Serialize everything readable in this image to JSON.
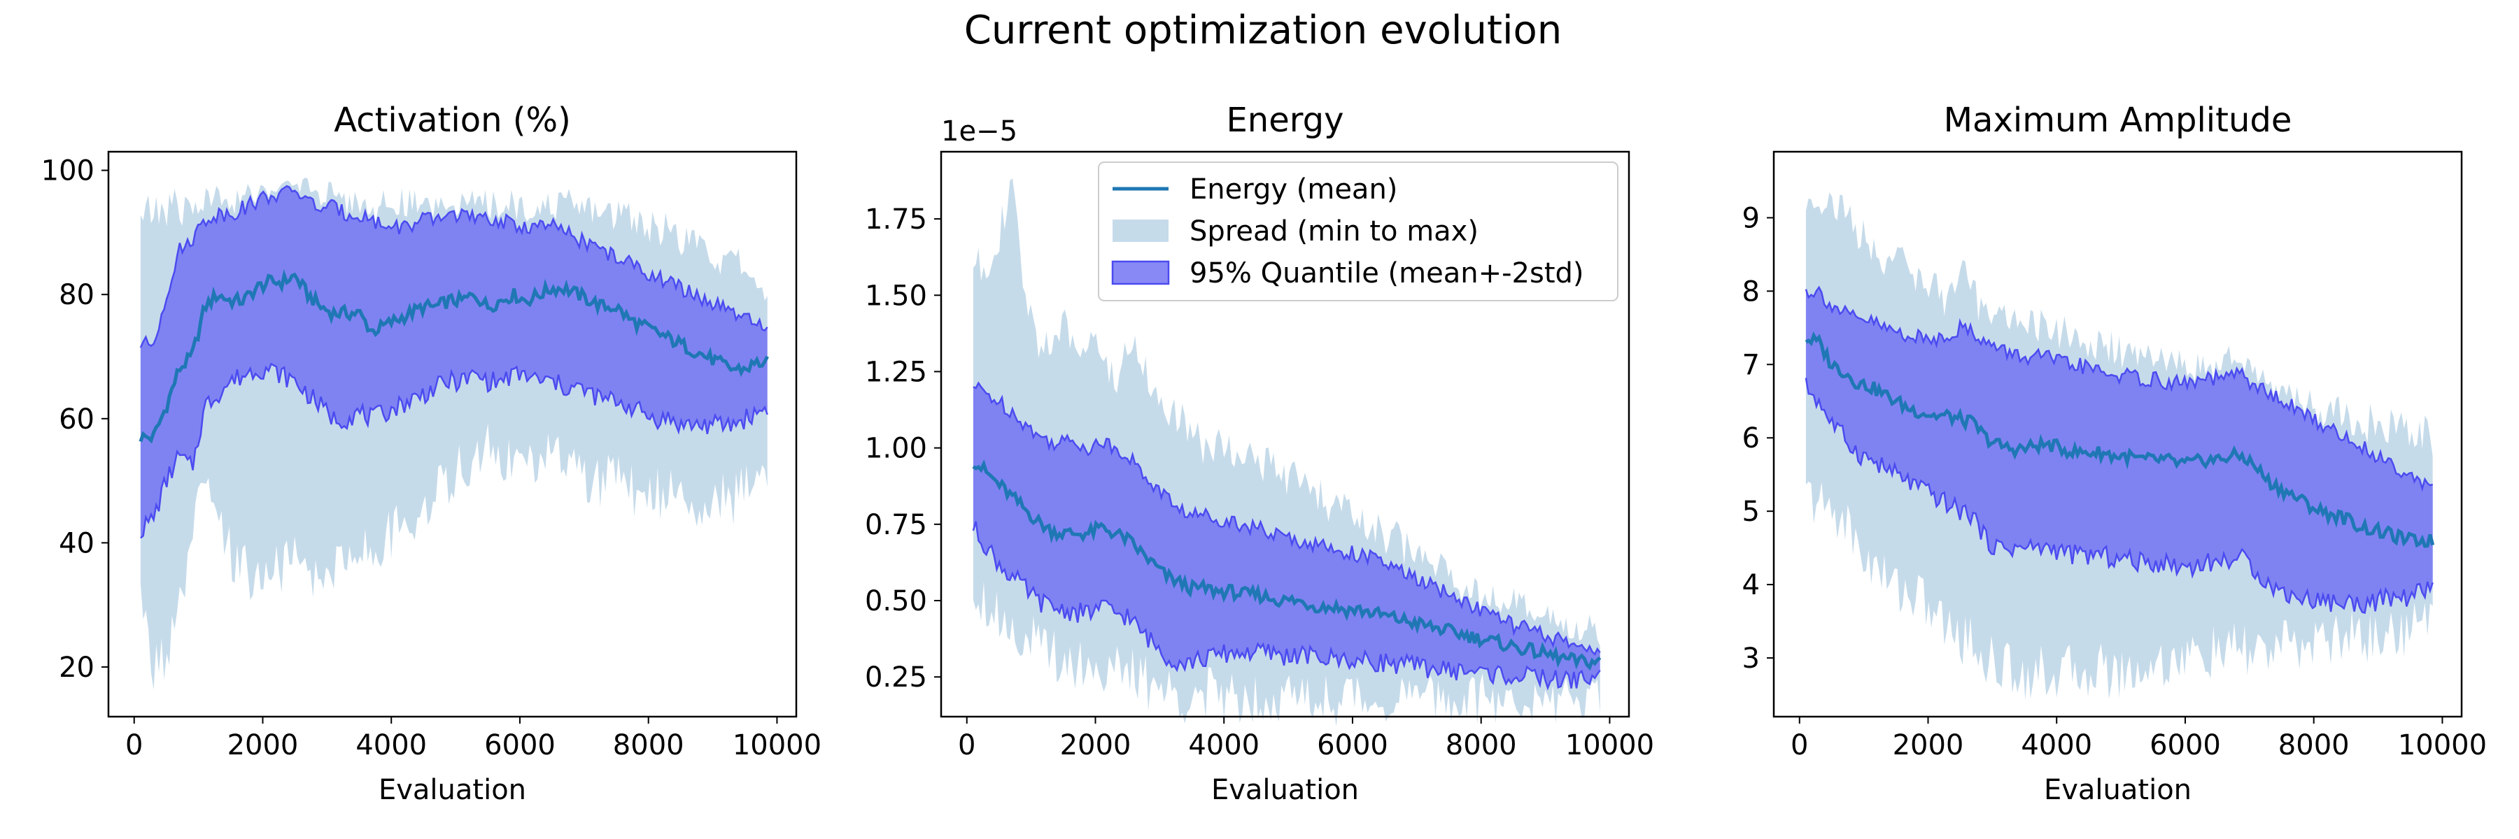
{
  "figure": {
    "title": "Current optimization evolution"
  },
  "style": {
    "mean_color": "#1f77b4",
    "spread_color": "#c6dbea",
    "quantile_fill": "#6f6ff4",
    "quantile_edge": "#4b4bf0"
  },
  "legend": {
    "location": "upper right of Energy panel",
    "entries": [
      "Energy (mean)",
      "Spread (min to max)",
      "95% Quantile (mean+-2std)"
    ]
  },
  "chart_data": [
    {
      "type": "area",
      "title": "Activation (%)",
      "xlabel": "Evaluation",
      "ylabel": "",
      "xlim": [
        -400,
        10300
      ],
      "ylim": [
        12,
        103
      ],
      "xticks": [
        0,
        2000,
        4000,
        6000,
        8000,
        10000
      ],
      "xtick_labels": [
        "0",
        "2000",
        "4000",
        "6000",
        "8000",
        "10000"
      ],
      "yticks": [
        20,
        40,
        60,
        80,
        100
      ],
      "ytick_labels": [
        "20",
        "40",
        "60",
        "80",
        "100"
      ],
      "offset_text": "",
      "grid": false,
      "x": [
        100,
        300,
        500,
        700,
        900,
        1100,
        1300,
        1500,
        1700,
        1900,
        2100,
        2300,
        2500,
        2700,
        2900,
        3100,
        3300,
        3500,
        3700,
        3900,
        4100,
        4300,
        4500,
        4700,
        4900,
        5100,
        5300,
        5500,
        5700,
        5900,
        6100,
        6300,
        6500,
        6700,
        6900,
        7100,
        7300,
        7500,
        7700,
        7900,
        8100,
        8300,
        8500,
        8700,
        8900,
        9100,
        9300,
        9500,
        9700,
        9850
      ],
      "series": [
        {
          "name": "Energy (mean)",
          "role": "mean",
          "values": [
            57,
            57,
            62,
            68,
            70,
            78,
            80,
            79,
            79,
            81,
            82,
            82,
            83,
            80,
            78,
            77,
            77,
            77,
            74,
            75,
            76,
            77,
            78,
            78,
            79,
            79,
            80,
            78,
            79,
            80,
            79,
            80,
            81,
            81,
            80,
            79,
            78,
            78,
            76,
            75,
            74,
            73,
            72,
            71,
            70,
            69,
            68,
            68,
            69,
            69
          ]
        },
        {
          "name": "Spread (min to max)",
          "role": "spread",
          "lower": [
            30,
            20,
            22,
            28,
            40,
            50,
            42,
            38,
            36,
            34,
            35,
            36,
            37,
            35,
            34,
            36,
            38,
            40,
            38,
            40,
            42,
            44,
            46,
            48,
            50,
            52,
            54,
            55,
            54,
            53,
            52,
            53,
            54,
            53,
            52,
            50,
            50,
            50,
            49,
            48,
            48,
            48,
            48,
            47,
            47,
            47,
            47,
            48,
            50,
            52
          ],
          "upper": [
            93,
            93,
            94,
            94,
            94,
            95,
            95,
            95,
            95,
            95,
            96,
            96,
            96,
            96,
            95,
            95,
            95,
            95,
            94,
            94,
            94,
            94,
            94,
            94,
            94,
            94,
            94,
            94,
            94,
            94,
            94,
            94,
            94,
            94,
            94,
            94,
            93,
            93,
            93,
            92,
            91,
            90,
            89,
            88,
            87,
            86,
            85,
            84,
            82,
            80
          ]
        },
        {
          "name": "95% Quantile (mean+-2std)",
          "role": "quantile",
          "lower": [
            42,
            44,
            50,
            54,
            52,
            62,
            64,
            66,
            67,
            68,
            68,
            67,
            66,
            64,
            62,
            60,
            60,
            61,
            60,
            61,
            62,
            63,
            64,
            65,
            66,
            66,
            67,
            66,
            66,
            67,
            67,
            66,
            66,
            65,
            65,
            64,
            63,
            63,
            62,
            61,
            60,
            60,
            59,
            59,
            59,
            59,
            59,
            60,
            61,
            62
          ],
          "upper": [
            72,
            72,
            80,
            87,
            89,
            92,
            93,
            93,
            94,
            95,
            96,
            96,
            97,
            95,
            94,
            94,
            93,
            93,
            92,
            91,
            91,
            91,
            92,
            92,
            93,
            93,
            92,
            92,
            92,
            91,
            91,
            91,
            91,
            90,
            89,
            88,
            87,
            86,
            85,
            84,
            83,
            82,
            81,
            80,
            79,
            78,
            77,
            76,
            75,
            74
          ]
        }
      ]
    },
    {
      "type": "area",
      "title": "Energy",
      "xlabel": "Evaluation",
      "ylabel": "",
      "xlim": [
        -400,
        10300
      ],
      "ylim": [
        0.12,
        1.97
      ],
      "xticks": [
        0,
        2000,
        4000,
        6000,
        8000,
        10000
      ],
      "xtick_labels": [
        "0",
        "2000",
        "4000",
        "6000",
        "8000",
        "10000"
      ],
      "yticks": [
        0.25,
        0.5,
        0.75,
        1.0,
        1.25,
        1.5,
        1.75
      ],
      "ytick_labels": [
        "0.25",
        "0.50",
        "0.75",
        "1.00",
        "1.25",
        "1.50",
        "1.75"
      ],
      "offset_text": "1e−5",
      "grid": false,
      "x": [
        100,
        300,
        500,
        700,
        900,
        1100,
        1300,
        1500,
        1700,
        1900,
        2100,
        2300,
        2500,
        2700,
        2900,
        3100,
        3300,
        3500,
        3700,
        3900,
        4100,
        4300,
        4500,
        4700,
        4900,
        5100,
        5300,
        5500,
        5700,
        5900,
        6100,
        6300,
        6500,
        6700,
        6900,
        7100,
        7300,
        7500,
        7700,
        7900,
        8100,
        8300,
        8500,
        8700,
        8900,
        9100,
        9300,
        9500,
        9700,
        9850
      ],
      "series": [
        {
          "name": "Energy (mean)",
          "role": "mean",
          "values": [
            0.96,
            0.92,
            0.88,
            0.84,
            0.8,
            0.76,
            0.73,
            0.72,
            0.72,
            0.72,
            0.74,
            0.72,
            0.7,
            0.66,
            0.62,
            0.58,
            0.56,
            0.54,
            0.54,
            0.53,
            0.53,
            0.52,
            0.52,
            0.51,
            0.5,
            0.5,
            0.49,
            0.48,
            0.48,
            0.47,
            0.47,
            0.46,
            0.45,
            0.44,
            0.43,
            0.42,
            0.41,
            0.4,
            0.39,
            0.38,
            0.37,
            0.36,
            0.35,
            0.34,
            0.33,
            0.32,
            0.31,
            0.3,
            0.3,
            0.3
          ]
        },
        {
          "name": "Spread (min to max)",
          "role": "spread",
          "lower": [
            0.55,
            0.5,
            0.45,
            0.42,
            0.38,
            0.35,
            0.33,
            0.31,
            0.3,
            0.29,
            0.28,
            0.27,
            0.26,
            0.24,
            0.22,
            0.2,
            0.19,
            0.19,
            0.19,
            0.19,
            0.19,
            0.19,
            0.19,
            0.19,
            0.19,
            0.18,
            0.18,
            0.18,
            0.18,
            0.18,
            0.18,
            0.18,
            0.18,
            0.18,
            0.18,
            0.18,
            0.18,
            0.18,
            0.18,
            0.18,
            0.18,
            0.18,
            0.18,
            0.18,
            0.18,
            0.18,
            0.19,
            0.19,
            0.2,
            0.2
          ],
          "upper": [
            1.6,
            1.6,
            1.7,
            1.85,
            1.5,
            1.35,
            1.35,
            1.4,
            1.3,
            1.4,
            1.3,
            1.2,
            1.35,
            1.3,
            1.2,
            1.1,
            1.1,
            1.05,
            1.0,
            1.0,
            1.0,
            1.0,
            0.95,
            0.95,
            0.9,
            0.9,
            0.85,
            0.85,
            0.8,
            0.8,
            0.75,
            0.75,
            0.7,
            0.7,
            0.65,
            0.65,
            0.6,
            0.6,
            0.55,
            0.55,
            0.5,
            0.5,
            0.48,
            0.46,
            0.44,
            0.42,
            0.41,
            0.4,
            0.4,
            0.4
          ]
        },
        {
          "name": "95% Quantile (mean+-2std)",
          "role": "quantile",
          "lower": [
            0.74,
            0.68,
            0.62,
            0.58,
            0.54,
            0.5,
            0.48,
            0.47,
            0.46,
            0.46,
            0.48,
            0.46,
            0.45,
            0.4,
            0.36,
            0.32,
            0.3,
            0.3,
            0.31,
            0.32,
            0.33,
            0.33,
            0.33,
            0.33,
            0.32,
            0.32,
            0.32,
            0.31,
            0.31,
            0.31,
            0.3,
            0.3,
            0.3,
            0.29,
            0.29,
            0.28,
            0.28,
            0.27,
            0.27,
            0.27,
            0.26,
            0.26,
            0.25,
            0.25,
            0.25,
            0.24,
            0.24,
            0.24,
            0.25,
            0.25
          ],
          "upper": [
            1.2,
            1.18,
            1.15,
            1.12,
            1.08,
            1.04,
            1.02,
            1.02,
            1.02,
            1.0,
            1.02,
            1.0,
            0.98,
            0.92,
            0.88,
            0.84,
            0.8,
            0.78,
            0.78,
            0.77,
            0.76,
            0.75,
            0.74,
            0.72,
            0.71,
            0.7,
            0.69,
            0.68,
            0.67,
            0.66,
            0.65,
            0.64,
            0.62,
            0.6,
            0.58,
            0.56,
            0.54,
            0.52,
            0.5,
            0.48,
            0.46,
            0.44,
            0.42,
            0.41,
            0.39,
            0.38,
            0.36,
            0.35,
            0.35,
            0.34
          ]
        }
      ]
    },
    {
      "type": "area",
      "title": "Maximum Amplitude",
      "xlabel": "Evaluation",
      "ylabel": "",
      "xlim": [
        -400,
        10300
      ],
      "ylim": [
        2.2,
        9.9
      ],
      "xticks": [
        0,
        2000,
        4000,
        6000,
        8000,
        10000
      ],
      "xtick_labels": [
        "0",
        "2000",
        "4000",
        "6000",
        "8000",
        "10000"
      ],
      "yticks": [
        3,
        4,
        5,
        6,
        7,
        8,
        9
      ],
      "ytick_labels": [
        "3",
        "4",
        "5",
        "6",
        "7",
        "8",
        "9"
      ],
      "offset_text": "",
      "grid": false,
      "x": [
        100,
        300,
        500,
        700,
        900,
        1100,
        1300,
        1500,
        1700,
        1900,
        2100,
        2300,
        2500,
        2700,
        2900,
        3100,
        3300,
        3500,
        3700,
        3900,
        4100,
        4300,
        4500,
        4700,
        4900,
        5100,
        5300,
        5500,
        5700,
        5900,
        6100,
        6300,
        6500,
        6700,
        6900,
        7100,
        7300,
        7500,
        7700,
        7900,
        8100,
        8300,
        8500,
        8700,
        8900,
        9100,
        9300,
        9500,
        9700,
        9850
      ],
      "series": [
        {
          "name": "Energy (mean)",
          "role": "mean",
          "values": [
            7.35,
            7.3,
            7.0,
            6.9,
            6.75,
            6.7,
            6.6,
            6.5,
            6.4,
            6.35,
            6.3,
            6.3,
            6.25,
            6.2,
            6.0,
            5.9,
            5.85,
            5.85,
            5.9,
            5.9,
            5.85,
            5.8,
            5.8,
            5.8,
            5.75,
            5.75,
            5.7,
            5.7,
            5.7,
            5.65,
            5.65,
            5.7,
            5.7,
            5.75,
            5.75,
            5.6,
            5.4,
            5.3,
            5.2,
            5.1,
            5.0,
            4.95,
            4.9,
            4.8,
            4.75,
            4.7,
            4.65,
            4.6,
            4.6,
            4.6
          ]
        },
        {
          "name": "Spread (min to max)",
          "role": "spread",
          "lower": [
            5.2,
            5.1,
            5.0,
            4.9,
            4.5,
            4.3,
            4.1,
            4.0,
            3.9,
            3.8,
            3.6,
            3.4,
            3.3,
            3.2,
            3.0,
            2.9,
            2.85,
            2.8,
            2.8,
            2.8,
            2.8,
            2.8,
            2.85,
            2.85,
            2.8,
            2.8,
            2.85,
            2.9,
            2.95,
            3.0,
            3.0,
            3.05,
            3.05,
            3.1,
            3.1,
            3.1,
            3.1,
            3.15,
            3.15,
            3.2,
            3.25,
            3.25,
            3.3,
            3.3,
            3.3,
            3.35,
            3.35,
            3.4,
            3.5,
            3.6
          ],
          "upper": [
            9.2,
            9.3,
            9.2,
            9.1,
            8.8,
            8.6,
            8.5,
            8.4,
            8.3,
            8.2,
            8.0,
            7.9,
            8.3,
            7.9,
            7.8,
            7.7,
            7.6,
            7.6,
            7.5,
            7.5,
            7.4,
            7.3,
            7.3,
            7.2,
            7.2,
            7.1,
            7.1,
            7.0,
            7.0,
            7.0,
            6.9,
            6.9,
            6.9,
            7.0,
            7.0,
            6.8,
            6.7,
            6.6,
            6.5,
            6.4,
            6.4,
            6.3,
            6.3,
            6.2,
            6.2,
            6.2,
            6.1,
            6.1,
            6.1,
            6.0
          ]
        },
        {
          "name": "95% Quantile (mean+-2std)",
          "role": "quantile",
          "lower": [
            6.7,
            6.5,
            6.2,
            6.0,
            5.8,
            5.7,
            5.6,
            5.5,
            5.4,
            5.3,
            5.2,
            5.1,
            5.0,
            4.95,
            4.6,
            4.5,
            4.5,
            4.5,
            4.5,
            4.5,
            4.45,
            4.4,
            4.4,
            4.4,
            4.35,
            4.35,
            4.3,
            4.3,
            4.3,
            4.25,
            4.25,
            4.3,
            4.3,
            4.35,
            4.35,
            4.2,
            4.0,
            3.9,
            3.85,
            3.8,
            3.8,
            3.75,
            3.75,
            3.75,
            3.75,
            3.8,
            3.8,
            3.85,
            3.9,
            4.0
          ],
          "upper": [
            8.0,
            8.0,
            7.8,
            7.7,
            7.6,
            7.6,
            7.5,
            7.45,
            7.4,
            7.35,
            7.35,
            7.4,
            7.5,
            7.45,
            7.3,
            7.2,
            7.15,
            7.1,
            7.1,
            7.1,
            7.0,
            7.0,
            6.95,
            6.9,
            6.85,
            6.85,
            6.8,
            6.8,
            6.75,
            6.75,
            6.75,
            6.8,
            6.8,
            6.85,
            6.85,
            6.7,
            6.6,
            6.5,
            6.4,
            6.3,
            6.2,
            6.1,
            6.0,
            5.9,
            5.8,
            5.7,
            5.6,
            5.5,
            5.4,
            5.3
          ]
        }
      ]
    }
  ]
}
